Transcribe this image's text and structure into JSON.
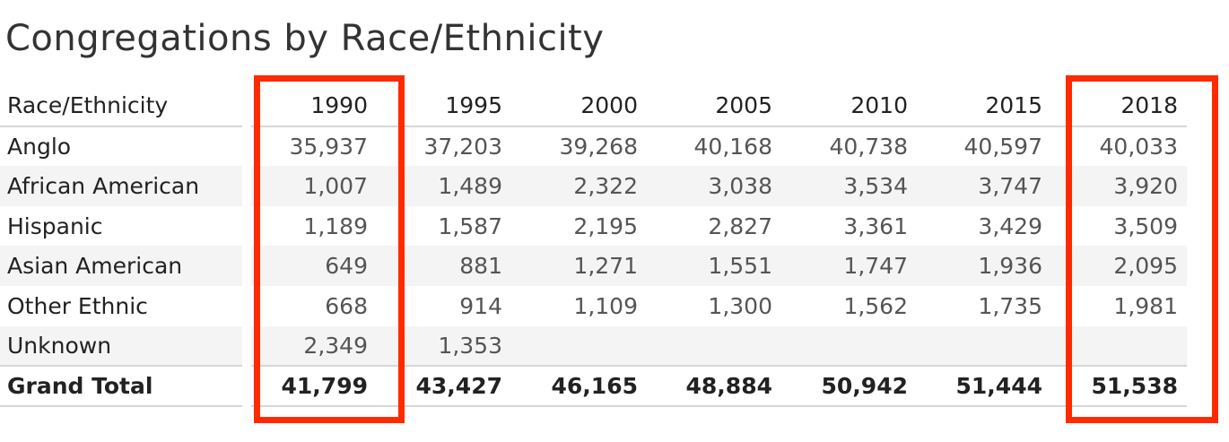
{
  "chart_data": {
    "type": "table",
    "title": "Congregations by Race/Ethnicity",
    "row_header": "Race/Ethnicity",
    "columns": [
      "1990",
      "1995",
      "2000",
      "2005",
      "2010",
      "2015",
      "2018"
    ],
    "rows": [
      {
        "label": "Anglo",
        "values": [
          "35,937",
          "37,203",
          "39,268",
          "40,168",
          "40,738",
          "40,597",
          "40,033"
        ]
      },
      {
        "label": "African American",
        "values": [
          "1,007",
          "1,489",
          "2,322",
          "3,038",
          "3,534",
          "3,747",
          "3,920"
        ]
      },
      {
        "label": "Hispanic",
        "values": [
          "1,189",
          "1,587",
          "2,195",
          "2,827",
          "3,361",
          "3,429",
          "3,509"
        ]
      },
      {
        "label": "Asian American",
        "values": [
          "649",
          "881",
          "1,271",
          "1,551",
          "1,747",
          "1,936",
          "2,095"
        ]
      },
      {
        "label": "Other Ethnic",
        "values": [
          "668",
          "914",
          "1,109",
          "1,300",
          "1,562",
          "1,735",
          "1,981"
        ]
      },
      {
        "label": "Unknown",
        "values": [
          "2,349",
          "1,353",
          "",
          "",
          "",
          "",
          ""
        ]
      }
    ],
    "total": {
      "label": "Grand Total",
      "values": [
        "41,799",
        "43,427",
        "46,165",
        "48,884",
        "50,942",
        "51,444",
        "51,538"
      ]
    },
    "highlighted_columns": [
      "1990",
      "2018"
    ],
    "highlight_color": "#ff2a00"
  }
}
